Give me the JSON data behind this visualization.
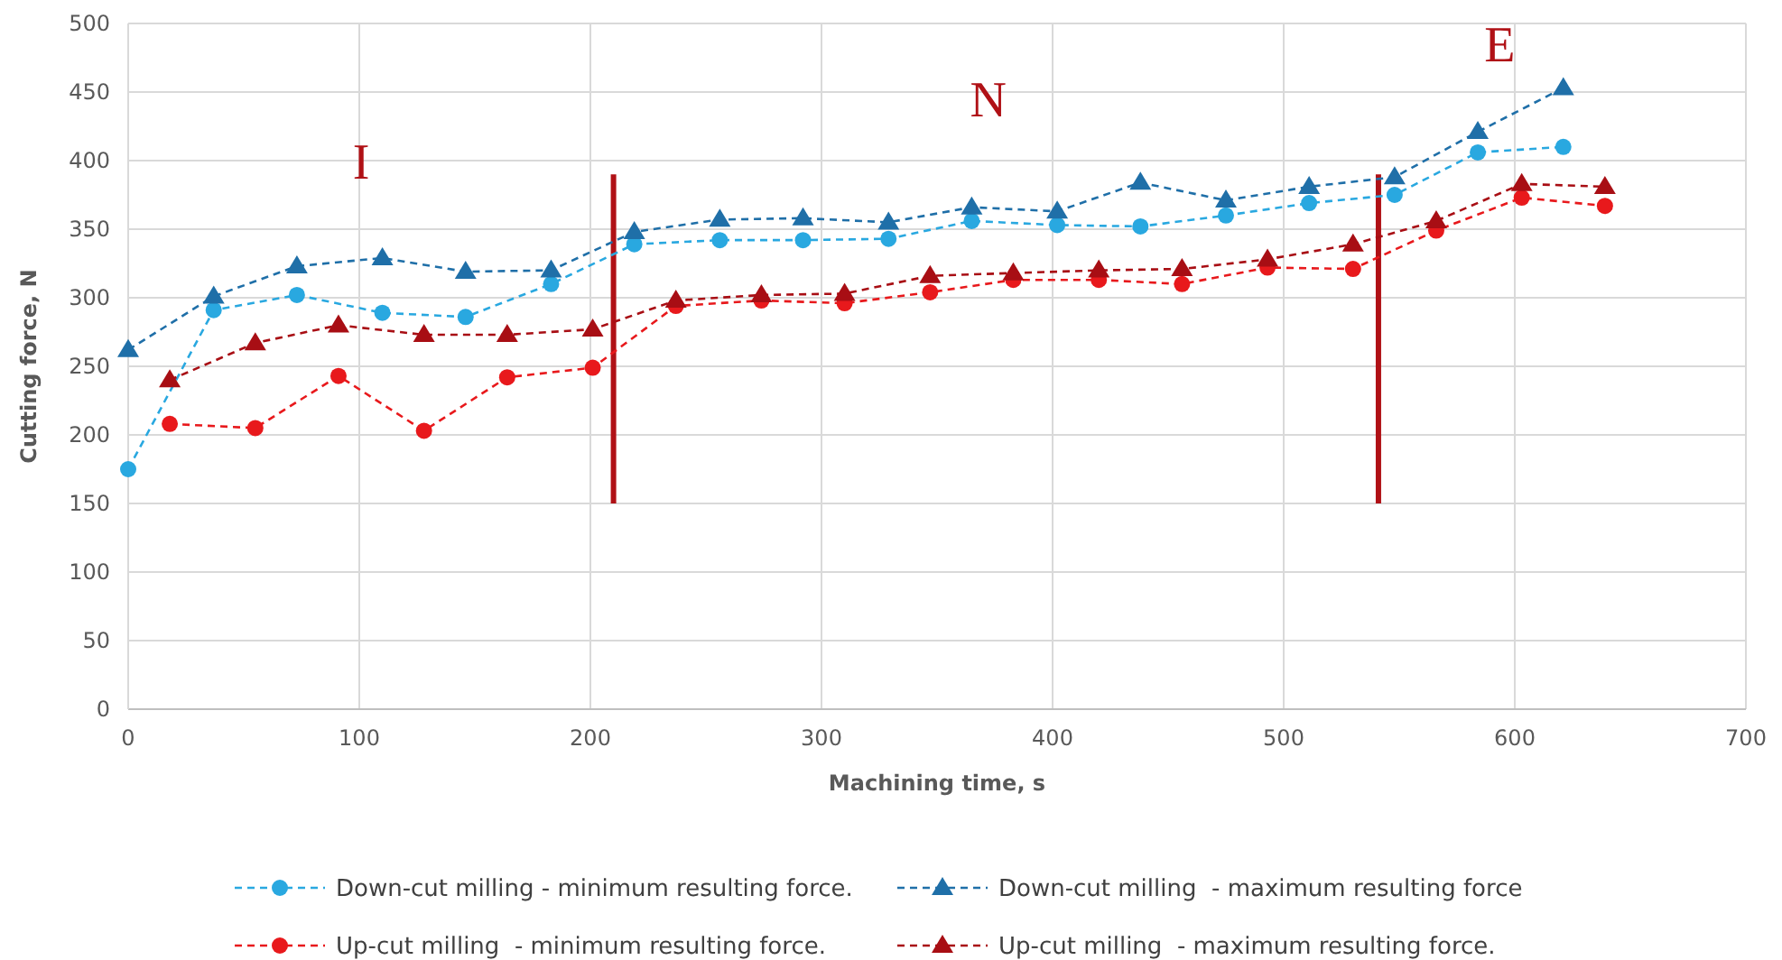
{
  "chart_data": {
    "type": "line",
    "xlabel": "Machining time, s",
    "ylabel": "Cutting force, N",
    "xlim": [
      0,
      700
    ],
    "xticks": [
      0,
      100,
      200,
      300,
      400,
      500,
      600,
      700
    ],
    "ylim": [
      0,
      500
    ],
    "yticks": [
      0,
      50,
      100,
      150,
      200,
      250,
      300,
      350,
      400,
      450,
      500
    ],
    "grid": true,
    "legend": "bottom",
    "line_style": "dashed",
    "series": [
      {
        "name": "Down-cut milling - minimum resulting force.",
        "color": "#29a8e0",
        "marker": "circle",
        "x": [
          0,
          37,
          73,
          110,
          146,
          183,
          219,
          256,
          292,
          329,
          365,
          402,
          438,
          475,
          511,
          548,
          584,
          621
        ],
        "values": [
          175,
          291,
          302,
          289,
          286,
          310,
          339,
          342,
          342,
          343,
          356,
          353,
          352,
          360,
          369,
          375,
          406,
          410
        ]
      },
      {
        "name": "Down-cut milling  - maximum resulting force",
        "color": "#1f6fa8",
        "marker": "triangle",
        "x": [
          0,
          37,
          73,
          110,
          146,
          183,
          219,
          256,
          292,
          329,
          365,
          402,
          438,
          475,
          511,
          548,
          584,
          621
        ],
        "values": [
          262,
          301,
          323,
          329,
          319,
          320,
          348,
          357,
          358,
          355,
          366,
          363,
          384,
          371,
          381,
          388,
          421,
          453
        ]
      },
      {
        "name": "Up-cut milling  - minimum resulting force.",
        "color": "#e8191c",
        "marker": "circle",
        "x": [
          18,
          55,
          91,
          128,
          164,
          201,
          237,
          274,
          310,
          347,
          383,
          420,
          456,
          493,
          530,
          566,
          603,
          639
        ],
        "values": [
          208,
          205,
          243,
          203,
          242,
          249,
          294,
          298,
          296,
          304,
          313,
          313,
          310,
          322,
          321,
          349,
          373,
          367
        ]
      },
      {
        "name": "Up-cut milling  - maximum resulting force.",
        "color": "#a80e14",
        "marker": "triangle",
        "x": [
          18,
          55,
          91,
          128,
          164,
          201,
          237,
          274,
          310,
          347,
          383,
          420,
          456,
          493,
          530,
          566,
          603,
          639
        ],
        "values": [
          240,
          267,
          280,
          273,
          273,
          277,
          298,
          302,
          303,
          316,
          318,
          320,
          321,
          328,
          339,
          356,
          383,
          381
        ]
      }
    ],
    "ref_lines": [
      {
        "axis": "x",
        "value": 210,
        "color": "#b01116"
      },
      {
        "axis": "x",
        "value": 541,
        "color": "#b01116"
      }
    ],
    "annotations": [
      "I",
      "N",
      "E"
    ]
  }
}
